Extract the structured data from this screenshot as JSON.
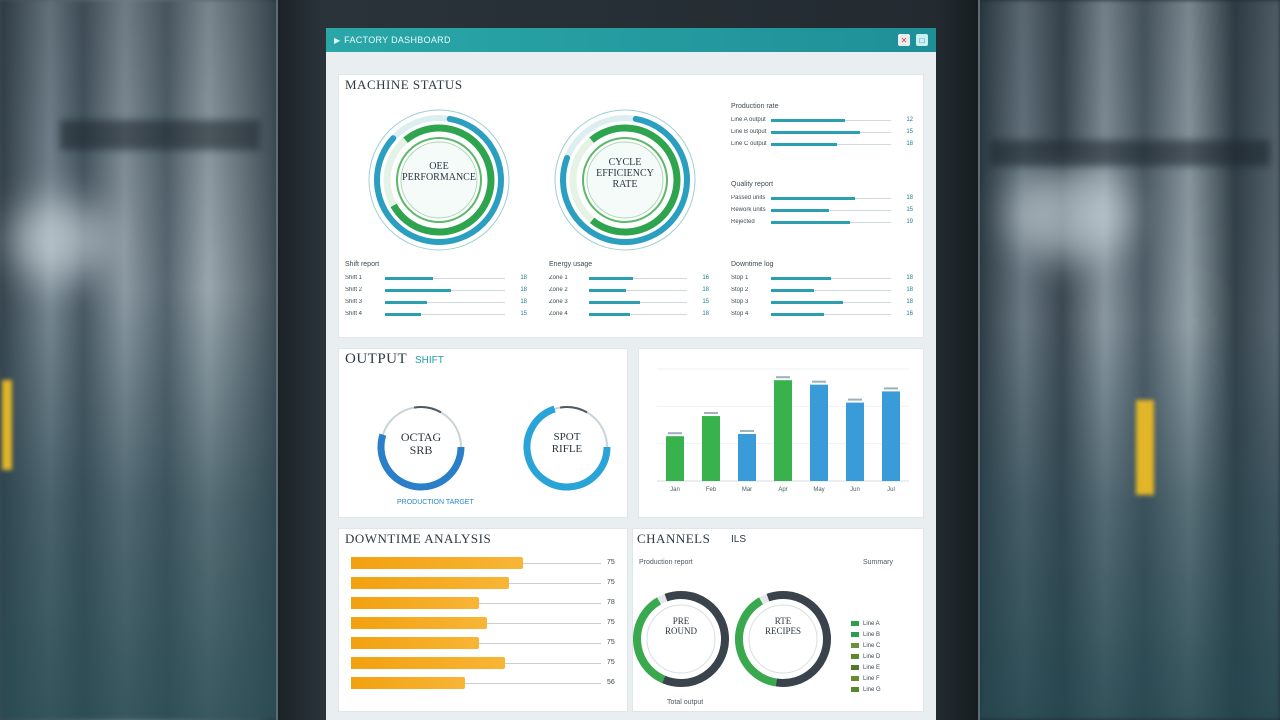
{
  "window": {
    "title": "FACTORY DASHBOARD",
    "icons": {
      "app": "play-icon",
      "close": "close-icon",
      "maximize": "maximize-icon"
    }
  },
  "top_panel": {
    "heading": "MACHINE STATUS",
    "rings": [
      {
        "line1": "OEE",
        "line2": "PERFORMANCE",
        "value": 0.84,
        "colors": [
          "#2fa44f",
          "#2b9fc0"
        ]
      },
      {
        "line1": "CYCLE",
        "line2": "EFFICIENCY",
        "line3": "RATE",
        "value": 0.78,
        "colors": [
          "#2fa44f",
          "#2b9fc0"
        ]
      }
    ],
    "right_stats": [
      {
        "title": "Production rate",
        "rows": [
          {
            "name": "Line A output",
            "value": "12",
            "level": 0.62
          },
          {
            "name": "Line B output",
            "value": "15",
            "level": 0.74
          },
          {
            "name": "Line C output",
            "value": "18",
            "level": 0.55
          }
        ]
      },
      {
        "title": "Quality report",
        "rows": [
          {
            "name": "Passed units",
            "value": "18",
            "level": 0.7
          },
          {
            "name": "Rework units",
            "value": "15",
            "level": 0.48
          },
          {
            "name": "Rejected",
            "value": "19",
            "level": 0.66
          }
        ]
      }
    ],
    "bottom_stats": [
      {
        "title": "Shift report",
        "rows": [
          {
            "name": "Shift 1",
            "value": "18",
            "level": 0.4
          },
          {
            "name": "Shift 2",
            "value": "18",
            "level": 0.55
          },
          {
            "name": "Shift 3",
            "value": "18",
            "level": 0.35
          },
          {
            "name": "Shift 4",
            "value": "15",
            "level": 0.3
          }
        ]
      },
      {
        "title": "Energy usage",
        "rows": [
          {
            "name": "Zone 1",
            "value": "16",
            "level": 0.45
          },
          {
            "name": "Zone 2",
            "value": "18",
            "level": 0.38
          },
          {
            "name": "Zone 3",
            "value": "15",
            "level": 0.52
          },
          {
            "name": "Zone 4",
            "value": "18",
            "level": 0.42
          }
        ]
      },
      {
        "title": "Downtime log",
        "rows": [
          {
            "name": "Stop 1",
            "value": "18",
            "level": 0.5
          },
          {
            "name": "Stop 2",
            "value": "18",
            "level": 0.36
          },
          {
            "name": "Stop 3",
            "value": "18",
            "level": 0.6
          },
          {
            "name": "Stop 4",
            "value": "16",
            "level": 0.44
          }
        ]
      }
    ]
  },
  "output_panel": {
    "heading": "OUTPUT",
    "sub": "SHIFT",
    "gauges": [
      {
        "line1": "OCTAG",
        "line2": "SRB",
        "value": 0.55,
        "color": "#2a7fc8"
      },
      {
        "line1": "SPOT",
        "line2": "RIFLE",
        "value": 0.7,
        "color": "#2aa3d8"
      }
    ],
    "footer": "PRODUCTION TARGET"
  },
  "bar_panel": {
    "chart_data": {
      "type": "bar",
      "categories": [
        "Jan",
        "Feb",
        "Mar",
        "Apr",
        "May",
        "Jun",
        "Jul"
      ],
      "values": [
        40,
        58,
        42,
        90,
        86,
        70,
        80
      ],
      "colors": [
        "#37b24d",
        "#37b24d",
        "#3a9bd9",
        "#37b24d",
        "#3a9bd9",
        "#3a9bd9",
        "#3a9bd9"
      ],
      "ylim": [
        0,
        100
      ]
    }
  },
  "hbar_panel": {
    "heading": "DOWNTIME ANALYSIS",
    "chart_data": {
      "type": "bar",
      "orientation": "horizontal",
      "values": [
        78,
        72,
        58,
        62,
        58,
        70,
        52
      ],
      "labels": [
        "75",
        "75",
        "78",
        "75",
        "75",
        "75",
        "56"
      ],
      "xlim": [
        0,
        100
      ]
    }
  },
  "donut_panel": {
    "heading": "CHANNELS",
    "sub": "ILS",
    "meta_left": "Production report",
    "meta_right": "Summary",
    "donuts": [
      {
        "line1": "PRE",
        "line2": "ROUND",
        "value": 0.62
      },
      {
        "line1": "RTE",
        "line2": "RECIPES",
        "value": 0.58
      }
    ],
    "footer": "Total output",
    "legend": [
      {
        "label": "Line A",
        "color": "#2e9d4c"
      },
      {
        "label": "Line B",
        "color": "#2e9d4c"
      },
      {
        "label": "Line C",
        "color": "#6b8f3a"
      },
      {
        "label": "Line D",
        "color": "#5b8a2e"
      },
      {
        "label": "Line E",
        "color": "#4f7b2a"
      },
      {
        "label": "Line F",
        "color": "#6a8a2f"
      },
      {
        "label": "Line G",
        "color": "#56862c"
      }
    ]
  }
}
